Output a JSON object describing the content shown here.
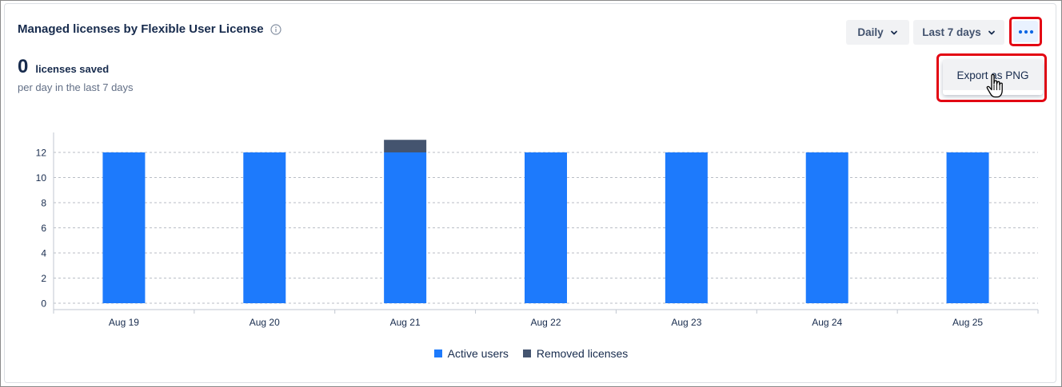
{
  "header": {
    "title": "Managed licenses by Flexible User License",
    "info_icon": "info-icon"
  },
  "summary": {
    "value": "0",
    "label": "licenses saved",
    "subtitle": "per day in the last 7 days"
  },
  "controls": {
    "granularity": "Daily",
    "range": "Last 7 days",
    "more_icon": "more-horizontal-icon"
  },
  "menu": {
    "export_label": "Export as PNG"
  },
  "colors": {
    "active": "#1d7afc",
    "removed": "#44546f",
    "highlight": "#e30613"
  },
  "chart_data": {
    "type": "bar",
    "stacked": true,
    "categories": [
      "Aug 19",
      "Aug 20",
      "Aug 21",
      "Aug 22",
      "Aug 23",
      "Aug 24",
      "Aug 25"
    ],
    "series": [
      {
        "name": "Active users",
        "color": "#1d7afc",
        "values": [
          12,
          12,
          12,
          12,
          12,
          12,
          12
        ]
      },
      {
        "name": "Removed licenses",
        "color": "#44546f",
        "values": [
          0,
          0,
          1,
          0,
          0,
          0,
          0
        ]
      }
    ],
    "yticks": [
      0,
      2,
      4,
      6,
      8,
      10,
      12
    ],
    "ylim": [
      0,
      12.6
    ],
    "grid": true,
    "legend_position": "bottom"
  }
}
